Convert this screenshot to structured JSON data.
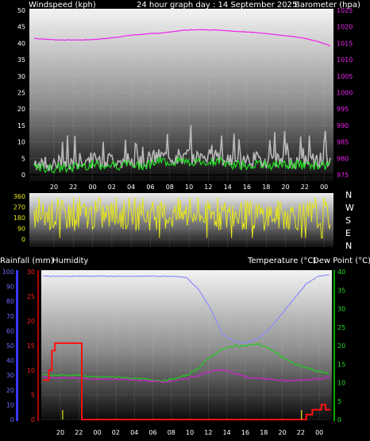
{
  "header": {
    "wind_label": "Windspeed (kph)",
    "title": "24 hour graph day : 14 September 2025",
    "baro_label": "Barometer (hpa)"
  },
  "panel_rain": {
    "rain_label": "Rainfall (mm)",
    "humidity_label": "Humidity",
    "temp_label": "Temperature (°C)",
    "dewpoint_label": "Dew Point (°C)"
  },
  "compass": [
    "N",
    "W",
    "S",
    "E",
    "N"
  ],
  "colors": {
    "wind_gust": "#b8b8b8",
    "wind_avg": "#22dd22",
    "wind_direction": "#e6e61a",
    "barometer": "#ee22ee",
    "humidity": "#8c8cff",
    "temperature": "#22cc22",
    "dew_point": "#cc22cc",
    "rainfall": "#ff1010",
    "left_axis_wind": "#ffffff",
    "left_axis_rain": "#ff2020",
    "left_axis_humidity": "#6a6aff",
    "right_axis_baro": "#ee22ee",
    "right_axis_temp": "#22dd22"
  },
  "chart_data": [
    {
      "type": "line",
      "name": "wind-barometer",
      "x_ticks": [
        "20",
        "22",
        "00",
        "02",
        "04",
        "06",
        "08",
        "10",
        "12",
        "14",
        "16",
        "18",
        "20",
        "22",
        "00"
      ],
      "y_left_ticks": [
        0,
        5,
        10,
        15,
        20,
        25,
        30,
        35,
        40,
        45,
        50
      ],
      "y_left_range": [
        0,
        50
      ],
      "y_right_ticks": [
        975,
        980,
        985,
        990,
        995,
        1000,
        1005,
        1010,
        1015,
        1020,
        1025
      ],
      "y_right_range": [
        975,
        1025
      ],
      "grid": true,
      "series": [
        {
          "key": "barometer",
          "axis": "right",
          "x": [
            0,
            2,
            4,
            6,
            8,
            10,
            12,
            14,
            16,
            18,
            20,
            22,
            24,
            26,
            28,
            30,
            32,
            34,
            36,
            38,
            40,
            42,
            44,
            46,
            48
          ],
          "values": [
            1016.5,
            1016.2,
            1016.0,
            1016.0,
            1016.0,
            1016.2,
            1016.5,
            1017.0,
            1017.5,
            1017.8,
            1018.0,
            1018.4,
            1018.9,
            1019.1,
            1019.1,
            1019.0,
            1018.7,
            1018.5,
            1018.2,
            1017.9,
            1017.4,
            1017.0,
            1016.4,
            1015.5,
            1014.2
          ]
        }
      ],
      "wind": {
        "hours": 48,
        "avg_base": [
          2,
          2,
          2,
          2,
          3,
          3,
          3,
          3,
          3,
          3,
          4,
          4,
          4,
          4,
          4,
          4,
          3,
          3,
          3,
          3,
          3,
          3,
          3,
          3,
          3
        ]
      }
    },
    {
      "type": "line",
      "name": "wind-direction",
      "y_ticks": [
        0,
        90,
        180,
        270,
        360
      ],
      "y_range": [
        0,
        360
      ],
      "grid": true
    },
    {
      "type": "line",
      "name": "rain-temp-humidity",
      "y_left_rain_ticks": [
        0,
        5,
        10,
        15,
        20,
        25,
        30
      ],
      "y_left_rain_range": [
        0,
        30
      ],
      "y_left_hum_ticks": [
        0,
        10,
        20,
        30,
        40,
        50,
        60,
        70,
        80,
        90,
        100
      ],
      "y_left_hum_range": [
        0,
        100
      ],
      "y_right_ticks": [
        0,
        5,
        10,
        15,
        20,
        25,
        30,
        35,
        40
      ],
      "y_right_range": [
        0,
        40
      ],
      "grid": true,
      "series": [
        {
          "key": "humidity",
          "axis": "humidity",
          "x": [
            0,
            2,
            4,
            6,
            8,
            10,
            12,
            14,
            16,
            18,
            20,
            22,
            24,
            26,
            28,
            30,
            31,
            32,
            33,
            34,
            36,
            38,
            40,
            42,
            44,
            46,
            48
          ],
          "values": [
            97,
            97,
            97,
            97,
            97,
            97,
            97,
            97,
            97,
            97,
            97,
            97,
            96,
            88,
            75,
            58,
            55,
            53,
            52,
            52,
            55,
            62,
            72,
            82,
            92,
            97,
            98
          ]
        },
        {
          "key": "temperature",
          "axis": "right",
          "x": [
            0,
            2,
            4,
            6,
            8,
            10,
            12,
            14,
            16,
            18,
            20,
            22,
            24,
            26,
            28,
            30,
            32,
            34,
            36,
            38,
            40,
            42,
            44,
            46,
            48
          ],
          "values": [
            12,
            12,
            12,
            12,
            11.5,
            11.5,
            11.5,
            11.3,
            11,
            10.8,
            10.5,
            11,
            12,
            14,
            17,
            19,
            20,
            20,
            20.5,
            19,
            17,
            15,
            14,
            13,
            12.5
          ]
        },
        {
          "key": "dew_point",
          "axis": "right",
          "x": [
            0,
            2,
            4,
            6,
            8,
            10,
            12,
            14,
            16,
            18,
            20,
            22,
            24,
            26,
            28,
            30,
            32,
            34,
            36,
            38,
            40,
            42,
            44,
            46,
            48
          ],
          "values": [
            11.5,
            11.3,
            11.3,
            11.2,
            11.0,
            11.0,
            10.9,
            10.8,
            10.6,
            10.4,
            10.2,
            10.5,
            11,
            12,
            13,
            13.5,
            12.5,
            11.5,
            11.2,
            10.9,
            10.5,
            10.5,
            10.8,
            11,
            11.5
          ]
        },
        {
          "key": "rainfall",
          "axis": "rain",
          "x": [
            0,
            1,
            1,
            1.5,
            1.5,
            2,
            2,
            6,
            6,
            6.5,
            6.5,
            44,
            44,
            45,
            45,
            46.5,
            46.5,
            47.2,
            47.2,
            48
          ],
          "values": [
            8,
            8,
            10,
            10,
            14,
            14,
            15.5,
            15.5,
            15.5,
            15.5,
            0,
            0,
            1,
            1,
            2,
            2,
            3,
            3,
            2,
            2
          ]
        }
      ]
    }
  ]
}
